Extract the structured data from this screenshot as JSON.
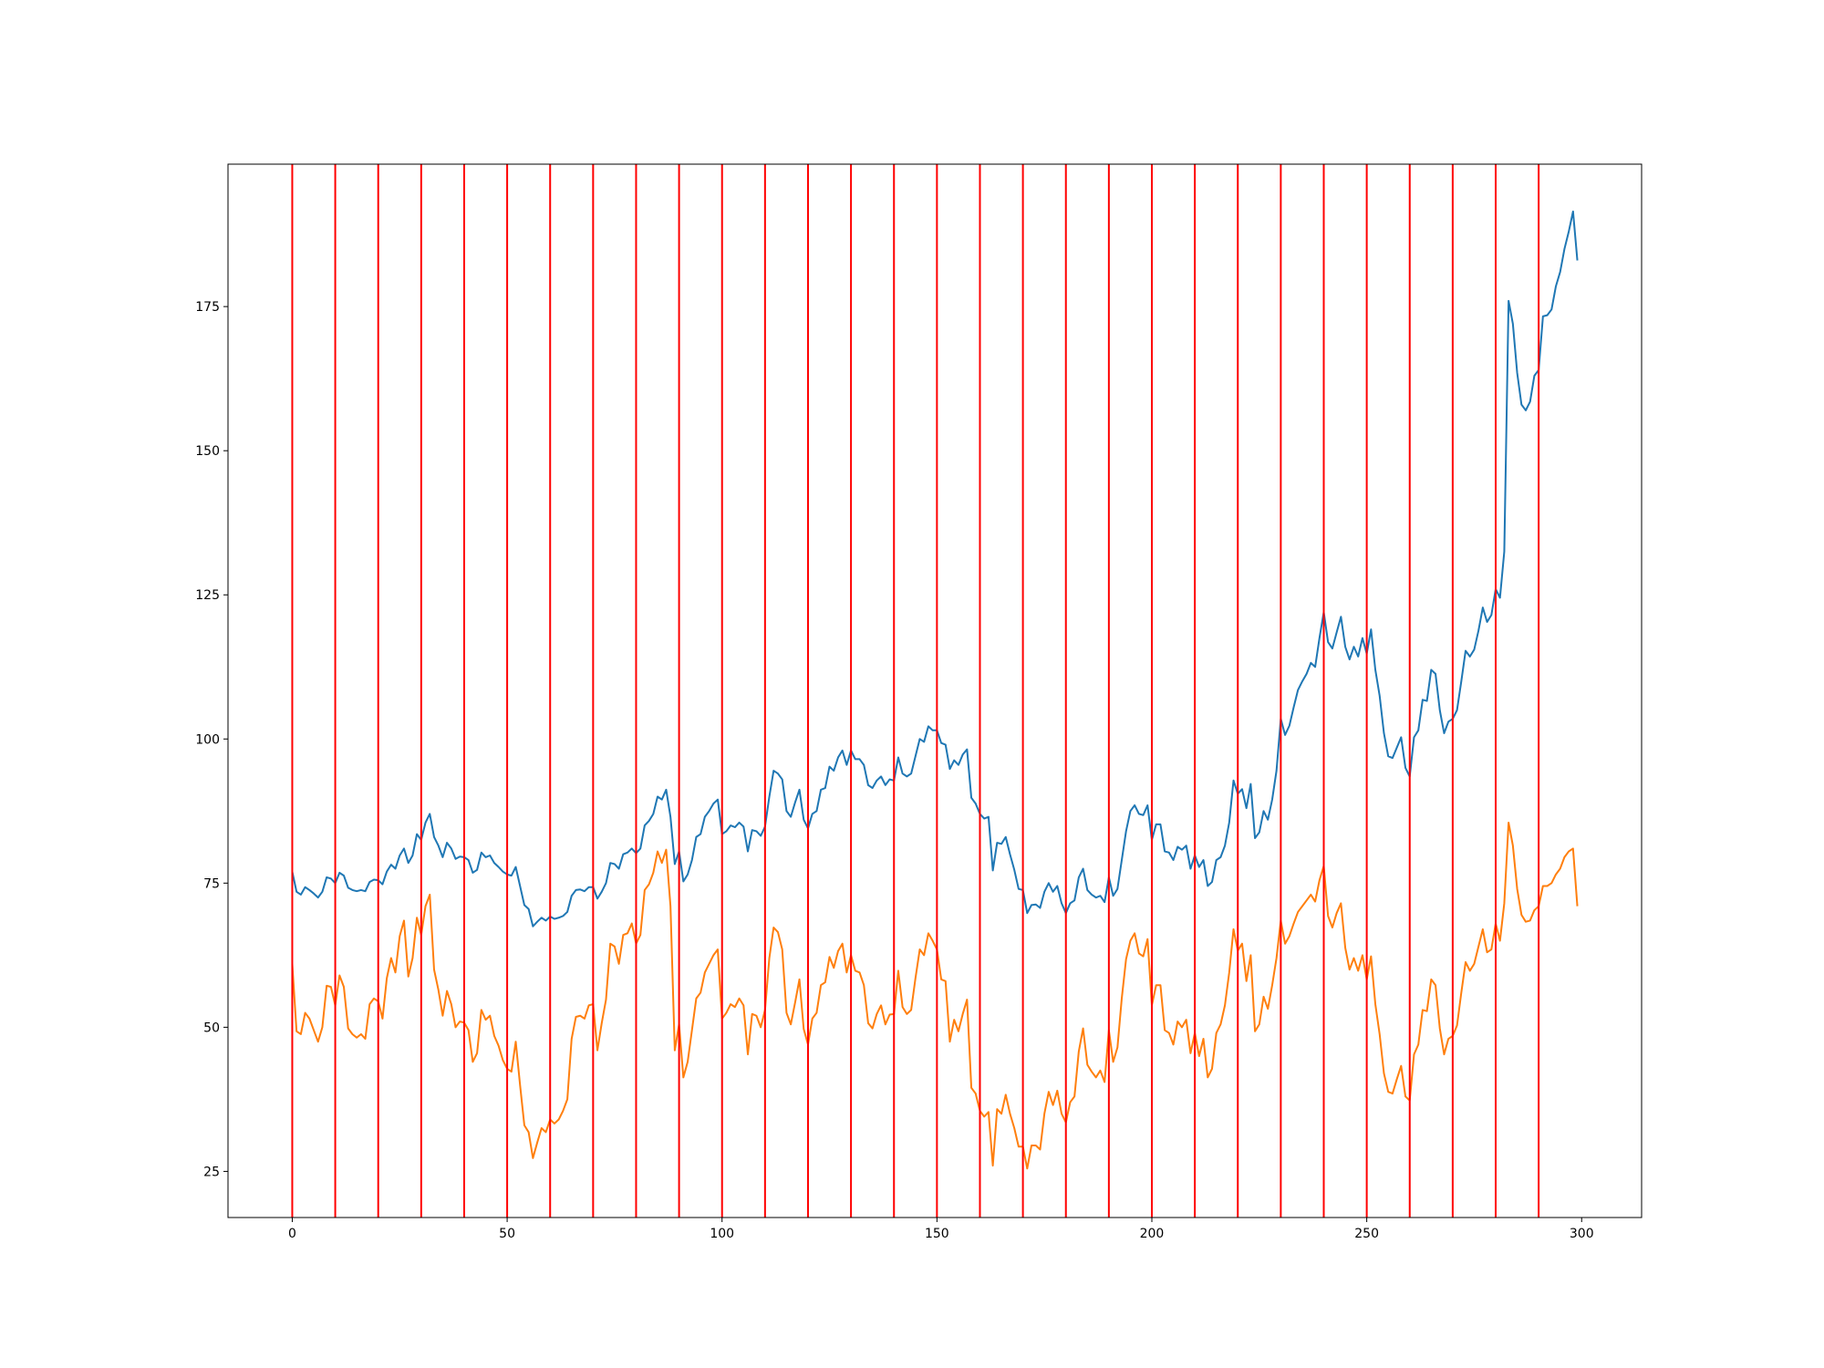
{
  "chart_data": {
    "type": "line",
    "x": [
      0,
      1,
      2,
      3,
      4,
      5,
      6,
      7,
      8,
      9,
      10,
      11,
      12,
      13,
      14,
      15,
      16,
      17,
      18,
      19,
      20,
      21,
      22,
      23,
      24,
      25,
      26,
      27,
      28,
      29,
      30,
      31,
      32,
      33,
      34,
      35,
      36,
      37,
      38,
      39,
      40,
      41,
      42,
      43,
      44,
      45,
      46,
      47,
      48,
      49,
      50,
      51,
      52,
      53,
      54,
      55,
      56,
      57,
      58,
      59,
      60,
      61,
      62,
      63,
      64,
      65,
      66,
      67,
      68,
      69,
      70,
      71,
      72,
      73,
      74,
      75,
      76,
      77,
      78,
      79,
      80,
      81,
      82,
      83,
      84,
      85,
      86,
      87,
      88,
      89,
      90,
      91,
      92,
      93,
      94,
      95,
      96,
      97,
      98,
      99,
      100,
      101,
      102,
      103,
      104,
      105,
      106,
      107,
      108,
      109,
      110,
      111,
      112,
      113,
      114,
      115,
      116,
      117,
      118,
      119,
      120,
      121,
      122,
      123,
      124,
      125,
      126,
      127,
      128,
      129,
      130,
      131,
      132,
      133,
      134,
      135,
      136,
      137,
      138,
      139,
      140,
      141,
      142,
      143,
      144,
      145,
      146,
      147,
      148,
      149,
      150,
      151,
      152,
      153,
      154,
      155,
      156,
      157,
      158,
      159,
      160,
      161,
      162,
      163,
      164,
      165,
      166,
      167,
      168,
      169,
      170,
      171,
      172,
      173,
      174,
      175,
      176,
      177,
      178,
      179,
      180,
      181,
      182,
      183,
      184,
      185,
      186,
      187,
      188,
      189,
      190,
      191,
      192,
      193,
      194,
      195,
      196,
      197,
      198,
      199,
      200,
      201,
      202,
      203,
      204,
      205,
      206,
      207,
      208,
      209,
      210,
      211,
      212,
      213,
      214,
      215,
      216,
      217,
      218,
      219,
      220,
      221,
      222,
      223,
      224,
      225,
      226,
      227,
      228,
      229,
      230,
      231,
      232,
      233,
      234,
      235,
      236,
      237,
      238,
      239,
      240,
      241,
      242,
      243,
      244,
      245,
      246,
      247,
      248,
      249,
      250,
      251,
      252,
      253,
      254,
      255,
      256,
      257,
      258,
      259,
      260,
      261,
      262,
      263,
      264,
      265,
      266,
      267,
      268,
      269,
      270,
      271,
      272,
      273,
      274,
      275,
      276,
      277,
      278,
      279,
      280,
      281,
      282,
      283,
      284,
      285,
      286,
      287,
      288,
      289,
      290,
      291,
      292,
      293,
      294,
      295,
      296,
      297,
      298,
      299
    ],
    "series": [
      {
        "color": "#1f77b4",
        "values": [
          77,
          73.5,
          73,
          74.3,
          73.8,
          73.2,
          72.5,
          73.5,
          76,
          75.8,
          75,
          76.8,
          76.3,
          74.2,
          73.8,
          73.6,
          73.8,
          73.6,
          75.2,
          75.6,
          75.5,
          74.8,
          77,
          78.2,
          77.5,
          79.8,
          81,
          78.5,
          79.8,
          83.5,
          82.5,
          85.5,
          87,
          83,
          81.5,
          79.5,
          82,
          81,
          79.2,
          79.6,
          79.5,
          79,
          76.8,
          77.3,
          80.3,
          79.5,
          79.8,
          78.5,
          77.8,
          77,
          76.5,
          76.3,
          77.8,
          74.5,
          71.2,
          70.5,
          67.5,
          68.3,
          69,
          68.5,
          69.2,
          68.8,
          69,
          69.3,
          70,
          72.8,
          73.8,
          73.9,
          73.6,
          74.3,
          74.3,
          72.3,
          73.5,
          75,
          78.5,
          78.3,
          77.5,
          80,
          80.3,
          81,
          80.2,
          81,
          85,
          85.8,
          87,
          90,
          89.5,
          91.2,
          86.5,
          78.3,
          80.5,
          75.3,
          76.5,
          79,
          83,
          83.5,
          86.5,
          87.5,
          88.8,
          89.5,
          83.5,
          84,
          85,
          84.7,
          85.5,
          84.8,
          80.5,
          84.2,
          84,
          83.2,
          84.8,
          90,
          94.5,
          94,
          93,
          87.5,
          86.5,
          89,
          91.2,
          86,
          84.5,
          87,
          87.5,
          91.2,
          91.5,
          95.2,
          94.5,
          96.8,
          98,
          95.5,
          98,
          96.5,
          96.5,
          95.5,
          92,
          91.5,
          92.8,
          93.5,
          92,
          93,
          92.8,
          96.8,
          94,
          93.5,
          94,
          97,
          100,
          99.5,
          102.2,
          101.5,
          101.5,
          99.3,
          99,
          94.8,
          96.3,
          95.5,
          97.3,
          98.2,
          89.8,
          88.8,
          87,
          86.2,
          86.5,
          77.2,
          82,
          81.8,
          83,
          80,
          77.3,
          74,
          73.8,
          69.8,
          71.2,
          71.3,
          70.7,
          73.5,
          75,
          73.5,
          74.5,
          71.5,
          69.8,
          71.5,
          72,
          76,
          77.5,
          73.8,
          73,
          72.5,
          72.8,
          71.7,
          76,
          72.8,
          74,
          79,
          84,
          87.5,
          88.5,
          87,
          86.8,
          88.5,
          82.5,
          85.2,
          85.2,
          80.5,
          80.3,
          79,
          81.3,
          80.8,
          81.5,
          77.5,
          79.8,
          77.8,
          79,
          74.5,
          75.2,
          79,
          79.5,
          81.5,
          85.5,
          92.8,
          90.5,
          91.3,
          88,
          92.2,
          82.8,
          83.8,
          87.5,
          86,
          89.5,
          94.5,
          103.5,
          100.7,
          102.3,
          105.5,
          108.5,
          110,
          111.3,
          113.2,
          112.5,
          117.5,
          122,
          116.8,
          115.7,
          118.5,
          121.2,
          116,
          113.8,
          116,
          114.3,
          117.5,
          114.8,
          119,
          112,
          107.5,
          101,
          97,
          96.7,
          98.5,
          100.3,
          95,
          93.5,
          100.3,
          101.5,
          106.8,
          106.6,
          112,
          111.3,
          105,
          101,
          103,
          103.5,
          105,
          110,
          115.3,
          114.3,
          115.5,
          118.8,
          122.8,
          120.3,
          121.5,
          126,
          124.5,
          132.5,
          176,
          172,
          163.5,
          158,
          157,
          158.5,
          163,
          164,
          173.3,
          173.5,
          174.5,
          178.5,
          181,
          185,
          188,
          191.5,
          183
        ]
      },
      {
        "color": "#ff7f0e",
        "values": [
          61,
          49.3,
          48.8,
          52.5,
          51.5,
          49.5,
          47.5,
          50,
          57.2,
          57,
          53.8,
          59,
          57,
          49.8,
          48.8,
          48.2,
          48.8,
          48,
          54,
          55,
          54.5,
          51.5,
          58.5,
          62,
          59.5,
          65.8,
          68.5,
          58.8,
          62,
          69,
          66,
          71,
          73,
          60,
          56.5,
          52,
          56.3,
          54,
          50,
          51,
          50.8,
          49.5,
          44,
          45.5,
          53,
          51.3,
          52,
          48.5,
          46.8,
          44.3,
          42.8,
          42.3,
          47.5,
          40,
          33,
          31.8,
          27.3,
          30,
          32.5,
          31.8,
          34,
          33.3,
          34,
          35.5,
          37.5,
          48,
          51.8,
          52,
          51.5,
          53.8,
          54,
          46,
          50.7,
          54.8,
          64.5,
          64,
          61,
          66,
          66.3,
          68,
          64.5,
          66,
          73.8,
          74.8,
          76.8,
          80.5,
          78.5,
          80.8,
          71,
          46,
          50.5,
          41.3,
          44,
          49.5,
          55,
          56,
          59.5,
          61,
          62.5,
          63.5,
          51.5,
          52.5,
          54,
          53.5,
          55,
          53.8,
          45.3,
          52.3,
          52,
          50,
          53,
          62,
          67.3,
          66.5,
          63.5,
          52.5,
          50.5,
          54.3,
          58.3,
          49.7,
          47,
          51.5,
          52.5,
          57.3,
          57.8,
          62.2,
          60.3,
          63.2,
          64.5,
          59.5,
          62.5,
          59.8,
          59.5,
          57.3,
          50.7,
          49.8,
          52.3,
          53.8,
          50.5,
          52.2,
          52.3,
          59.8,
          53.5,
          52.3,
          53,
          58.5,
          63.5,
          62.5,
          66.3,
          65,
          63.5,
          58.3,
          58,
          47.5,
          51.3,
          49.3,
          52.3,
          54.8,
          39.5,
          38.5,
          35.5,
          34.5,
          35.3,
          26,
          35.8,
          35,
          38.3,
          35,
          32.5,
          29.3,
          29.3,
          25.5,
          29.5,
          29.5,
          28.8,
          35,
          38.8,
          36.5,
          39,
          35,
          33.5,
          37,
          38,
          45.8,
          49.8,
          43.5,
          42.3,
          41.3,
          42.5,
          40.5,
          49.5,
          44,
          46.5,
          55,
          61.8,
          65,
          66.3,
          62.8,
          62.3,
          65.3,
          53.8,
          57.3,
          57.3,
          49.5,
          49,
          47,
          51,
          50,
          51.3,
          45.5,
          49,
          45,
          48,
          41.3,
          42.8,
          49,
          50.5,
          53.8,
          59.5,
          67,
          63.3,
          64.5,
          58,
          62.5,
          49.3,
          50.5,
          55.3,
          53.2,
          57.3,
          62,
          68.5,
          64.5,
          65.8,
          68,
          70,
          71,
          72,
          73,
          71.8,
          75.5,
          78,
          69.3,
          67.3,
          69.8,
          71.5,
          63.8,
          60,
          62,
          59.8,
          62.5,
          58.3,
          62.3,
          54,
          48.8,
          42,
          38.8,
          38.5,
          41,
          43.3,
          38,
          37.3,
          45.3,
          47,
          53,
          52.8,
          58.3,
          57.3,
          49.8,
          45.3,
          48,
          48.5,
          50.3,
          56,
          61.3,
          59.8,
          61,
          64,
          67,
          63,
          63.5,
          68,
          65,
          71.5,
          85.5,
          81.5,
          74,
          69.5,
          68.3,
          68.5,
          70.3,
          71,
          74.5,
          74.5,
          75,
          76.5,
          77.5,
          79.5,
          80.5,
          81,
          71
        ]
      }
    ],
    "vlines": [
      0,
      10,
      20,
      30,
      40,
      50,
      60,
      70,
      80,
      90,
      100,
      110,
      120,
      130,
      140,
      150,
      160,
      170,
      180,
      190,
      200,
      210,
      220,
      230,
      240,
      250,
      260,
      270,
      280,
      290
    ],
    "vline_color": "red",
    "xlim": [
      -14.95,
      313.95
    ],
    "xticks": [
      0,
      50,
      100,
      150,
      200,
      250,
      300
    ],
    "ylim": [
      17.0,
      199.7
    ],
    "yticks": [
      25,
      50,
      75,
      100,
      125,
      150,
      175
    ],
    "grid": false
  }
}
